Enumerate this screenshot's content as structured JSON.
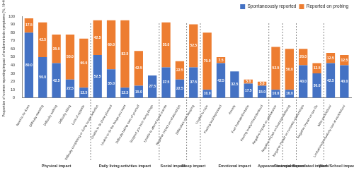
{
  "chart_data": {
    "type": "bar",
    "stacked": true,
    "grid": false,
    "legend": "top-right",
    "data_labels": true,
    "y_label": "Proportion of women reporting impact of endometriosis symptoms (%, N=40)",
    "ylim": [
      0,
      100
    ],
    "yticks": [
      0,
      10,
      20,
      30,
      40,
      50,
      60,
      70,
      80,
      90,
      100
    ],
    "groups": [
      {
        "name": "Physical impact",
        "categories": [
          "Need to lie down",
          "Difficulty standing",
          "Difficulty walking",
          "Difficulty sitting",
          "Loss of appetite"
        ]
      },
      {
        "name": "Daily living activities impact",
        "categories": [
          "Difficulty completing or doing house activities",
          "Unable to do plans planned",
          "Unable to do the things you want",
          "Difficulty taking care of yourself",
          "Stopped you from doing things"
        ]
      },
      {
        "name": "Social impact",
        "categories": [
          "Unable to attend social events",
          "Negative impact on relationships"
        ]
      },
      {
        "name": "Sleep impact",
        "categories": [
          "Difficulties with sleeping"
        ]
      },
      {
        "name": "Emotional impact",
        "categories": [
          "Unable to cope",
          "Feeling sad/depressed",
          "Anxiety",
          "Feel frustrated/irritable",
          "Feeling lonely/misunderstood"
        ]
      },
      {
        "name": "Appearance impact",
        "categories": [
          "Negative impact on appearance"
        ]
      },
      {
        "name": "Financial impact",
        "categories": [
          "Negative impact on financial wellbeing"
        ]
      },
      {
        "name": "Sex-related impact",
        "categories": [
          "Negative impact on romantic relationships",
          "Negative impact on sex life"
        ]
      },
      {
        "name": "Work/School impact",
        "categories": [
          "Miss work/school",
          "Limitations/productivity loss at work/school"
        ]
      }
    ],
    "series": [
      {
        "name": "Spontaneously reported",
        "color": "#4472c4",
        "values": [
          80,
          50,
          42.5,
          22.5,
          12.5,
          52.5,
          35,
          12.5,
          15,
          27.5,
          37.5,
          22.5,
          37.5,
          10,
          42.5,
          32.5,
          17.5,
          15,
          10,
          10,
          40,
          30,
          42.5,
          40
        ],
        "value_labels": [
          "80.0",
          "50.0",
          "42.5",
          "22.5",
          "12.5",
          "52.5",
          "35.0",
          "12.5",
          "15.0",
          "27.5",
          "37.5",
          "22.5",
          "37.5",
          "10.0",
          "42.5",
          "32.5",
          "17.5",
          "15.0",
          "10.0",
          "10.0",
          "40.0",
          "30.0",
          "42.5",
          "40.0"
        ]
      },
      {
        "name": "Reported on probing",
        "color": "#ed7d31",
        "values": [
          17.5,
          42.5,
          35,
          55,
          60,
          42.5,
          60,
          82.5,
          42.5,
          null,
          55,
          22.5,
          52.5,
          70,
          7.5,
          null,
          5,
          5,
          52.5,
          50,
          20,
          12.5,
          12.5,
          12.5
        ],
        "value_labels": [
          "17.5",
          "42.5",
          "35.0",
          "55.0",
          "60.0",
          "42.5",
          "60.0",
          "82.5",
          "42.5",
          null,
          "55.0",
          "22.5",
          "52.5",
          "70.0",
          "7.5",
          null,
          "5.0",
          "5.0",
          "52.5",
          "50.0",
          "20.0",
          "12.5",
          "12.5",
          "12.5"
        ]
      }
    ]
  }
}
